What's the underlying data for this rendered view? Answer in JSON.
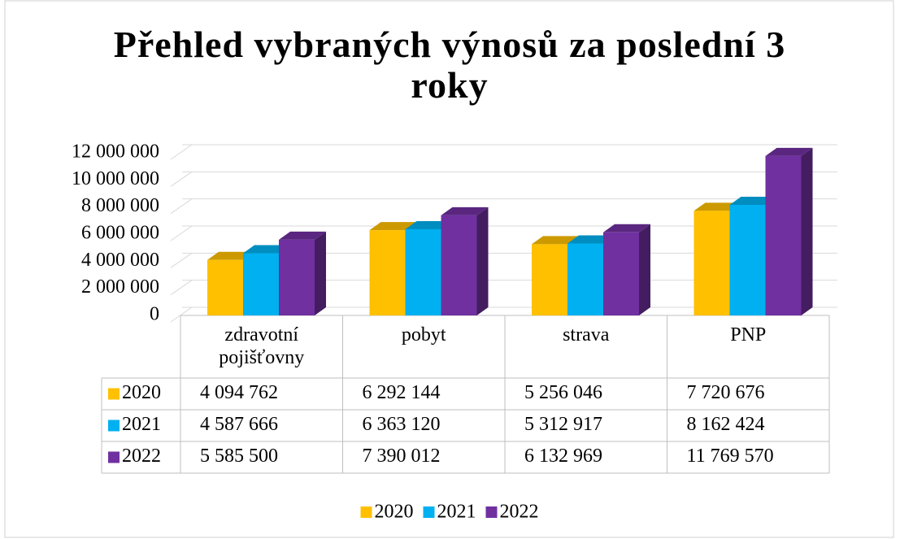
{
  "chart_data": {
    "type": "bar3d",
    "title": "Přehled vybraných výnosů za poslední 3 roky",
    "categories": [
      "zdravotní pojišťovny",
      "pobyt",
      "strava",
      "PNP"
    ],
    "series": [
      {
        "name": "2020",
        "color": "#FFC000",
        "values": [
          4094762,
          6292144,
          5256046,
          7720676
        ],
        "value_labels": [
          "4 094 762",
          "6 292 144",
          "5 256 046",
          "7 720 676"
        ]
      },
      {
        "name": "2021",
        "color": "#00B0F0",
        "values": [
          4587666,
          6363120,
          5312917,
          8162424
        ],
        "value_labels": [
          "4 587 666",
          "6 363 120",
          "5 312 917",
          "8 162 424"
        ]
      },
      {
        "name": "2022",
        "color": "#7030A0",
        "values": [
          5585500,
          7390012,
          6132969,
          11769570
        ],
        "value_labels": [
          "5 585 500",
          "7 390 012",
          "6 132 969",
          "11 769 570"
        ]
      }
    ],
    "ylim": [
      0,
      12000000
    ],
    "yticks": [
      0,
      {
        "value": 2000000,
        "label": "2 000 000"
      },
      {
        "value": 4000000,
        "label": "4 000 000"
      },
      {
        "value": 6000000,
        "label": "6 000 000"
      },
      {
        "value": 8000000,
        "label": "8 000 000"
      },
      {
        "value": 10000000,
        "label": "10 000 000"
      },
      {
        "value": 12000000,
        "label": "12 000 000"
      }
    ],
    "grid": true,
    "legend": "bottom",
    "data_table": true
  }
}
